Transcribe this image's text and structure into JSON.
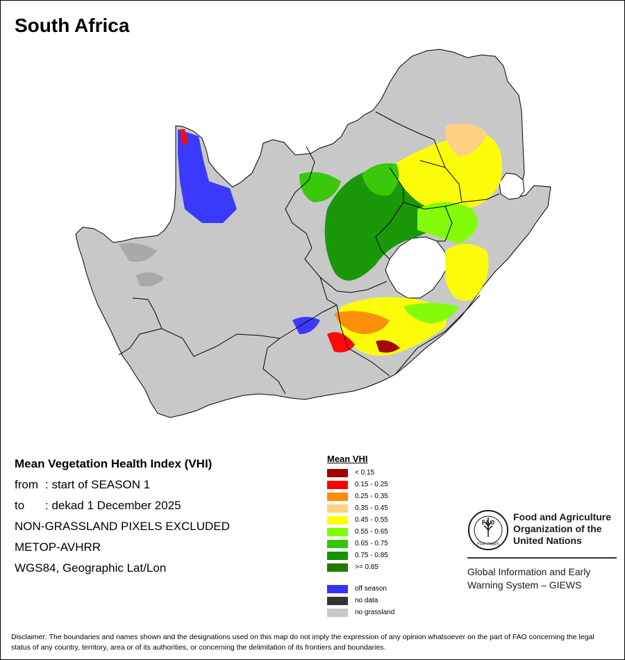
{
  "title": "South Africa",
  "info": {
    "index_title": "Mean Vegetation Health Index (VHI)",
    "from_label": "from",
    "from_value": ": start of SEASON 1",
    "to_label": "to",
    "to_value": ": dekad 1 December 2025",
    "nongrassland": "NON-GRASSLAND PIXELS EXCLUDED",
    "sensor": "METOP-AVHRR",
    "projection": "WGS84, Geographic Lat/Lon"
  },
  "legend": {
    "title": "Mean VHI",
    "classes": [
      {
        "label": "< 0.15",
        "color": "#a00000"
      },
      {
        "label": "0.15 - 0.25",
        "color": "#ff0000"
      },
      {
        "label": "0.25 - 0.35",
        "color": "#ff8c00"
      },
      {
        "label": "0.35 - 0.45",
        "color": "#ffd27f"
      },
      {
        "label": "0.45 - 0.55",
        "color": "#ffff00"
      },
      {
        "label": "0.55 - 0.65",
        "color": "#7fff00"
      },
      {
        "label": "0.65 - 0.75",
        "color": "#32c800"
      },
      {
        "label": "0.75 - 0.85",
        "color": "#119600"
      },
      {
        "label": ">= 0.85",
        "color": "#247800"
      }
    ],
    "special": [
      {
        "label": "off season",
        "color": "#3333ff"
      },
      {
        "label": "no data",
        "color": "#333333"
      },
      {
        "label": "no grassland",
        "color": "#c8c8c8"
      }
    ]
  },
  "map": {
    "land_color": "#c8c8c8",
    "border_color": "#000000"
  },
  "logo": {
    "org_line1": "Food and Agriculture",
    "org_line2": "Organization of the",
    "org_line3": "United Nations",
    "giews_line1": "Global Information and Early",
    "giews_line2": "Warning System – GIEWS",
    "emblem_text": "FAO",
    "motto": "FIAT PANIS",
    "icon": "fao-wheat-emblem"
  },
  "disclaimer": "Disclaimer: The boundaries and names shown and the designations used on this map do not imply the expression of any opinion whatsoever on the part of FAO concerning the legal status of any country, territory, area or of its authorities, or concerning the delimitation of its frontiers and boundaries."
}
